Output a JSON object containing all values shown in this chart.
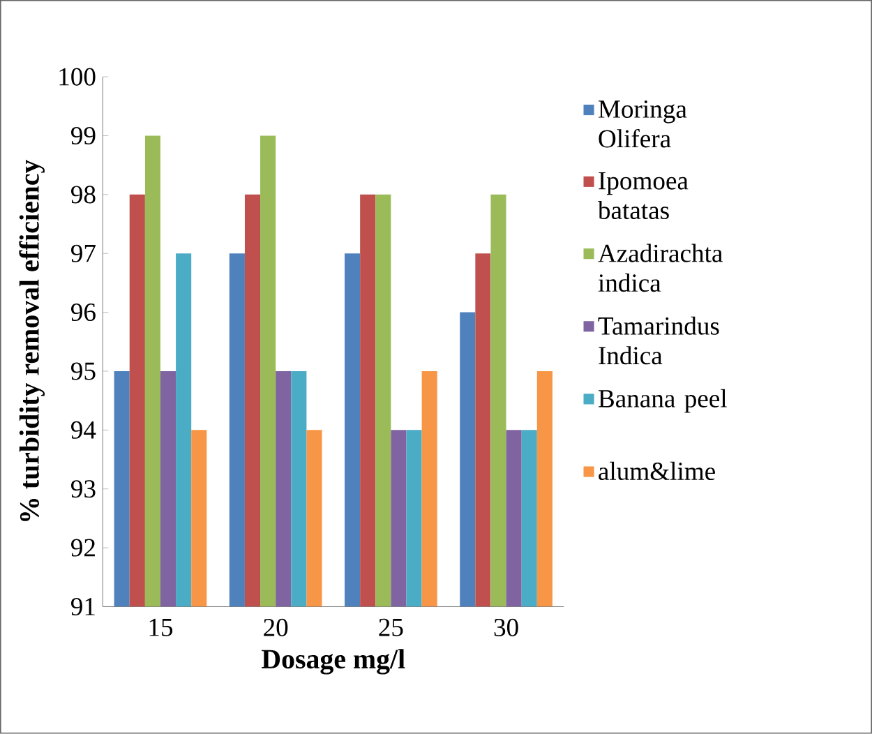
{
  "chart_data": {
    "type": "bar",
    "xlabel": "Dosage mg/l",
    "ylabel": "% turbidity removal efficiency",
    "categories": [
      "15",
      "20",
      "25",
      "30"
    ],
    "ylim": [
      91,
      100
    ],
    "yticks": [
      91,
      92,
      93,
      94,
      95,
      96,
      97,
      98,
      99,
      100
    ],
    "legend": "right",
    "series": [
      {
        "name": "Moringa Olifera",
        "color": "#4f81bd",
        "values": [
          95,
          97,
          97,
          96
        ]
      },
      {
        "name": "Ipomoea batatas",
        "color": "#c0504d",
        "values": [
          98,
          98,
          98,
          97
        ]
      },
      {
        "name": "Azadirachta indica",
        "color": "#9bbb59",
        "values": [
          99,
          99,
          98,
          98
        ]
      },
      {
        "name": "Tamarindus Indica",
        "color": "#8064a2",
        "values": [
          95,
          95,
          94,
          94
        ]
      },
      {
        "name": "Banana peel",
        "color": "#4bacc6",
        "values": [
          97,
          95,
          94,
          94
        ]
      },
      {
        "name": "alum&lime",
        "color": "#f79646",
        "values": [
          94,
          94,
          95,
          95
        ]
      }
    ]
  }
}
